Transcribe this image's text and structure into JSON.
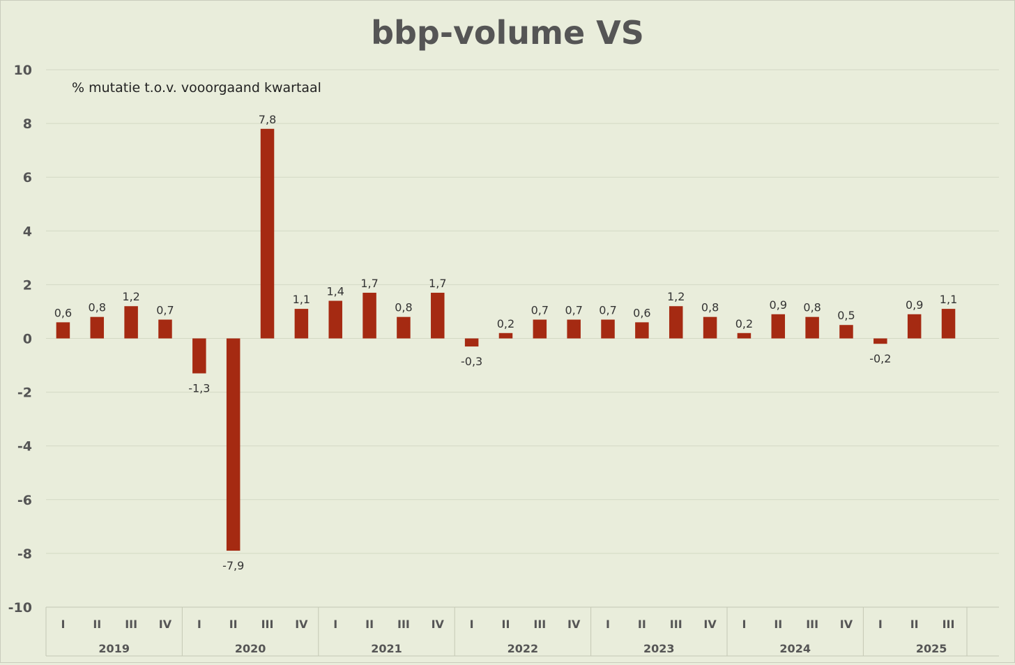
{
  "chart_data": {
    "type": "bar",
    "title": "bbp-volume VS",
    "annotation": "% mutatie t.o.v. vooorgaand kwartaal",
    "xlabel": "",
    "ylabel": "",
    "ylim": [
      -10,
      10
    ],
    "yticks": [
      10,
      8,
      6,
      4,
      2,
      0,
      -2,
      -4,
      -6,
      -8,
      -10
    ],
    "grid": true,
    "colors": {
      "bar": "#a52a12",
      "grid": "#d3d8c4",
      "axis": "#c4c8b4",
      "text": "#555555",
      "background": "#e9eddb"
    },
    "groups": [
      {
        "year": "2019",
        "quarters": [
          "I",
          "II",
          "III",
          "IV"
        ],
        "values": [
          0.6,
          0.8,
          1.2,
          0.7
        ],
        "labels": [
          "0,6",
          "0,8",
          "1,2",
          "0,7"
        ]
      },
      {
        "year": "2020",
        "quarters": [
          "I",
          "II",
          "III",
          "IV"
        ],
        "values": [
          -1.3,
          -7.9,
          7.8,
          1.1
        ],
        "labels": [
          "-1,3",
          "-7,9",
          "7,8",
          "1,1"
        ]
      },
      {
        "year": "2021",
        "quarters": [
          "I",
          "II",
          "III",
          "IV"
        ],
        "values": [
          1.4,
          1.7,
          0.8,
          1.7
        ],
        "labels": [
          "1,4",
          "1,7",
          "0,8",
          "1,7"
        ]
      },
      {
        "year": "2022",
        "quarters": [
          "I",
          "II",
          "III",
          "IV"
        ],
        "values": [
          -0.3,
          0.2,
          0.7,
          0.7
        ],
        "labels": [
          "-0,3",
          "0,2",
          "0,7",
          "0,7"
        ]
      },
      {
        "year": "2023",
        "quarters": [
          "I",
          "II",
          "III",
          "IV"
        ],
        "values": [
          0.7,
          0.6,
          1.2,
          0.8
        ],
        "labels": [
          "0,7",
          "0,6",
          "1,2",
          "0,8"
        ]
      },
      {
        "year": "2024",
        "quarters": [
          "I",
          "II",
          "III",
          "IV"
        ],
        "values": [
          0.2,
          0.9,
          0.8,
          0.5
        ],
        "labels": [
          "0,2",
          "0,9",
          "0,8",
          "0,5"
        ]
      },
      {
        "year": "2025",
        "quarters": [
          "I",
          "II",
          "III"
        ],
        "values": [
          -0.2,
          0.9,
          1.1
        ],
        "labels": [
          "-0,2",
          "0,9",
          "1,1"
        ]
      }
    ]
  }
}
